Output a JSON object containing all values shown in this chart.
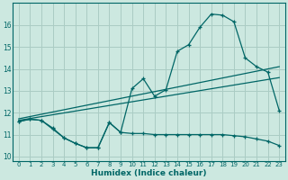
{
  "xlabel": "Humidex (Indice chaleur)",
  "bg_color": "#cce8e0",
  "grid_color": "#aaccC4",
  "line_color": "#006666",
  "xlim": [
    -0.5,
    23.5
  ],
  "ylim": [
    9.8,
    17.0
  ],
  "xticks": [
    0,
    1,
    2,
    3,
    4,
    5,
    6,
    7,
    8,
    9,
    10,
    11,
    12,
    13,
    14,
    15,
    16,
    17,
    18,
    19,
    20,
    21,
    22,
    23
  ],
  "yticks": [
    10,
    11,
    12,
    13,
    14,
    15,
    16
  ],
  "curve1_x": [
    0,
    1,
    2,
    3,
    4,
    5,
    6,
    7,
    8,
    9,
    10,
    11,
    12,
    13,
    14,
    15,
    16,
    17,
    18,
    19,
    20,
    21,
    22,
    23
  ],
  "curve1_y": [
    11.6,
    11.7,
    11.65,
    11.3,
    10.85,
    10.6,
    10.4,
    10.4,
    11.55,
    11.1,
    13.1,
    13.55,
    12.75,
    13.05,
    14.8,
    15.1,
    15.9,
    16.5,
    16.45,
    16.15,
    14.5,
    14.1,
    13.85,
    12.1
  ],
  "line2_x": [
    0,
    23
  ],
  "line2_y": [
    11.65,
    13.6
  ],
  "line3_x": [
    0,
    23
  ],
  "line3_y": [
    11.72,
    14.1
  ],
  "bottom_curve_x": [
    0,
    1,
    2,
    3,
    4,
    5,
    6,
    7,
    8,
    9,
    10,
    11,
    12,
    13,
    14,
    15,
    16,
    17,
    18,
    19,
    20,
    21,
    22,
    23
  ],
  "bottom_curve_y": [
    11.6,
    11.7,
    11.65,
    11.25,
    10.85,
    10.6,
    10.4,
    10.4,
    11.55,
    11.1,
    11.05,
    11.05,
    11.0,
    11.0,
    11.0,
    11.0,
    11.0,
    11.0,
    11.0,
    10.95,
    10.9,
    10.8,
    10.7,
    10.5
  ]
}
